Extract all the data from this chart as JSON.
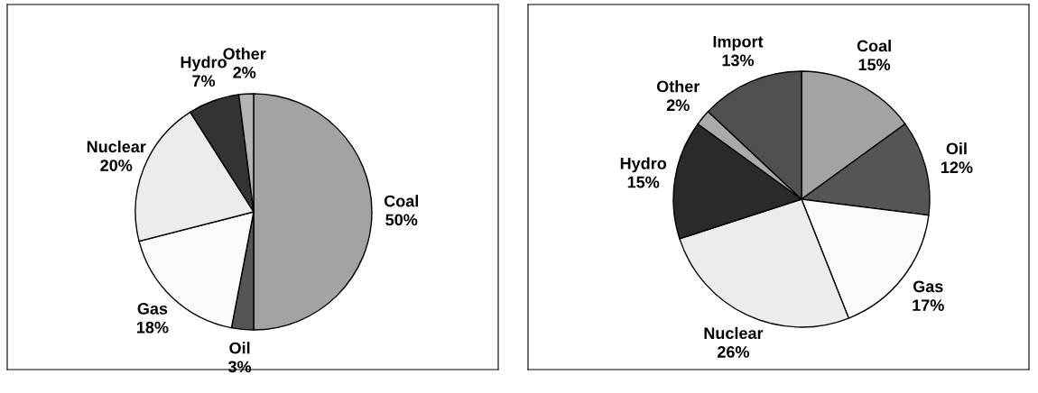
{
  "chart_data": [
    {
      "type": "pie",
      "categories": [
        "Coal",
        "Oil",
        "Gas",
        "Nuclear",
        "Hydro",
        "Other"
      ],
      "values": [
        50,
        3,
        18,
        20,
        7,
        2
      ],
      "colors": [
        "#a3a3a3",
        "#555555",
        "#fafafa",
        "#ececec",
        "#333333",
        "#b4b4b4"
      ],
      "value_labels": [
        "50%",
        "3%",
        "18%",
        "20%",
        "7%",
        "2%"
      ]
    },
    {
      "type": "pie",
      "categories": [
        "Coal",
        "Oil",
        "Gas",
        "Nuclear",
        "Hydro",
        "Other",
        "Import"
      ],
      "values": [
        15,
        12,
        17,
        26,
        15,
        2,
        13
      ],
      "colors": [
        "#a3a3a3",
        "#555555",
        "#fafafa",
        "#ececec",
        "#2a2a2a",
        "#aaaaaa",
        "#505050"
      ],
      "value_labels": [
        "15%",
        "12%",
        "17%",
        "26%",
        "15%",
        "2%",
        "13%"
      ]
    }
  ]
}
